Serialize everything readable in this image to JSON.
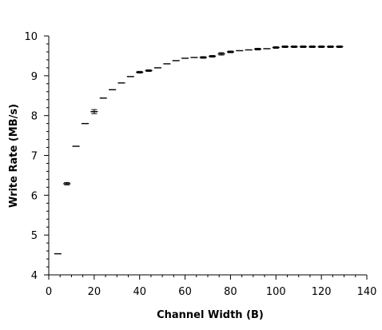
{
  "chart_data": {
    "type": "scatter",
    "title": "",
    "xlabel": "Channel Width (B)",
    "ylabel": "Write Rate (MB/s)",
    "xlim": [
      0,
      140
    ],
    "ylim": [
      4,
      10
    ],
    "x_ticks": [
      "0",
      "20",
      "40",
      "60",
      "80",
      "100",
      "120",
      "140"
    ],
    "y_ticks": [
      "4",
      "5",
      "6",
      "7",
      "8",
      "9",
      "10"
    ],
    "grid": false,
    "legend": "none",
    "marker": "horizontal error bar",
    "colors": {
      "marks": "#000000",
      "axes": "#000000",
      "background": "#ffffff"
    },
    "series": [
      {
        "x": [
          4,
          8,
          12,
          16,
          20,
          24,
          28,
          32,
          36,
          40,
          44,
          48,
          52,
          56,
          60,
          64,
          68,
          72,
          76,
          80,
          84,
          88,
          92,
          96,
          100,
          104,
          108,
          112,
          116,
          120,
          124,
          128
        ],
        "y": [
          4.53,
          6.29,
          7.23,
          7.8,
          8.1,
          8.44,
          8.65,
          8.82,
          8.98,
          9.09,
          9.13,
          9.2,
          9.3,
          9.38,
          9.44,
          9.46,
          9.46,
          9.49,
          9.55,
          9.6,
          9.63,
          9.65,
          9.67,
          9.68,
          9.71,
          9.73,
          9.73,
          9.73,
          9.73,
          9.73,
          9.73,
          9.73
        ],
        "err": [
          0.005,
          0.03,
          0.005,
          0.005,
          0.05,
          0.005,
          0.005,
          0.005,
          0.005,
          0.02,
          0.02,
          0.005,
          0.005,
          0.005,
          0.005,
          0.005,
          0.02,
          0.02,
          0.03,
          0.02,
          0.005,
          0.005,
          0.02,
          0.005,
          0.02,
          0.02,
          0.02,
          0.02,
          0.02,
          0.02,
          0.02,
          0.02
        ]
      }
    ]
  }
}
